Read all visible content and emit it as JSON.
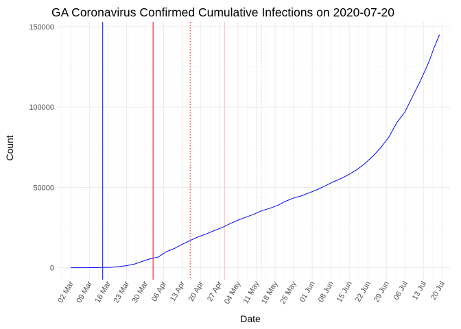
{
  "chart_data": {
    "type": "line",
    "title": "GA Coronavirus Confirmed Cumulative Infections on 2020-07-20",
    "xlabel": "Date",
    "ylabel": "Count",
    "x_ticks": [
      "02 Mar",
      "09 Mar",
      "16 Mar",
      "23 Mar",
      "30 Mar",
      "06 Apr",
      "13 Apr",
      "20 Apr",
      "27 Apr",
      "04 May",
      "11 May",
      "18 May",
      "25 May",
      "01 Jun",
      "08 Jun",
      "15 Jun",
      "22 Jun",
      "29 Jun",
      "06 Jul",
      "13 Jul",
      "20 Jul"
    ],
    "x_tick_dates": [
      "2020-03-02",
      "2020-03-09",
      "2020-03-16",
      "2020-03-23",
      "2020-03-30",
      "2020-04-06",
      "2020-04-13",
      "2020-04-20",
      "2020-04-27",
      "2020-05-04",
      "2020-05-11",
      "2020-05-18",
      "2020-05-25",
      "2020-06-01",
      "2020-06-08",
      "2020-06-15",
      "2020-06-22",
      "2020-06-29",
      "2020-07-06",
      "2020-07-13",
      "2020-07-20"
    ],
    "y_ticks": [
      0,
      50000,
      100000,
      150000
    ],
    "y_tick_labels": [
      "0",
      "50000",
      "100000",
      "150000"
    ],
    "xlim": [
      "2020-02-26",
      "2020-07-23"
    ],
    "ylim": [
      -7400,
      153000
    ],
    "grid": true,
    "series": [
      {
        "color": "#0000ff",
        "x": [
          "2020-03-02",
          "2020-03-05",
          "2020-03-08",
          "2020-03-11",
          "2020-03-14",
          "2020-03-17",
          "2020-03-20",
          "2020-03-23",
          "2020-03-26",
          "2020-03-29",
          "2020-04-01",
          "2020-04-04",
          "2020-04-07",
          "2020-04-10",
          "2020-04-13",
          "2020-04-16",
          "2020-04-19",
          "2020-04-22",
          "2020-04-25",
          "2020-04-28",
          "2020-05-01",
          "2020-05-04",
          "2020-05-07",
          "2020-05-10",
          "2020-05-13",
          "2020-05-16",
          "2020-05-19",
          "2020-05-22",
          "2020-05-25",
          "2020-05-28",
          "2020-05-31",
          "2020-06-03",
          "2020-06-06",
          "2020-06-09",
          "2020-06-12",
          "2020-06-15",
          "2020-06-18",
          "2020-06-21",
          "2020-06-24",
          "2020-06-27",
          "2020-06-30",
          "2020-07-03",
          "2020-07-06",
          "2020-07-09",
          "2020-07-12",
          "2020-07-15",
          "2020-07-17",
          "2020-07-19"
        ],
        "y": [
          0,
          0,
          20,
          50,
          150,
          300,
          700,
          1300,
          2300,
          4000,
          5600,
          6700,
          10000,
          12000,
          14600,
          17000,
          19200,
          21000,
          23100,
          25000,
          27400,
          29600,
          31500,
          33300,
          35500,
          37000,
          38800,
          41400,
          43400,
          44800,
          46700,
          48700,
          51000,
          53500,
          55600,
          58200,
          61200,
          65000,
          69600,
          75000,
          81500,
          90500,
          97000,
          107000,
          117000,
          128000,
          137000,
          145000
        ]
      }
    ],
    "vlines": [
      {
        "date": "2020-03-14",
        "color": "#0000ff",
        "style": "solid"
      },
      {
        "date": "2020-04-02",
        "color": "#ff0000",
        "style": "solid"
      },
      {
        "date": "2020-04-16",
        "color": "#ff0000",
        "style": "dotted"
      },
      {
        "date": "2020-04-29",
        "color": "#ffc0cb",
        "style": "solid"
      },
      {
        "date": "2020-05-13",
        "color": "#d3d3d3",
        "style": "dotted"
      }
    ]
  }
}
